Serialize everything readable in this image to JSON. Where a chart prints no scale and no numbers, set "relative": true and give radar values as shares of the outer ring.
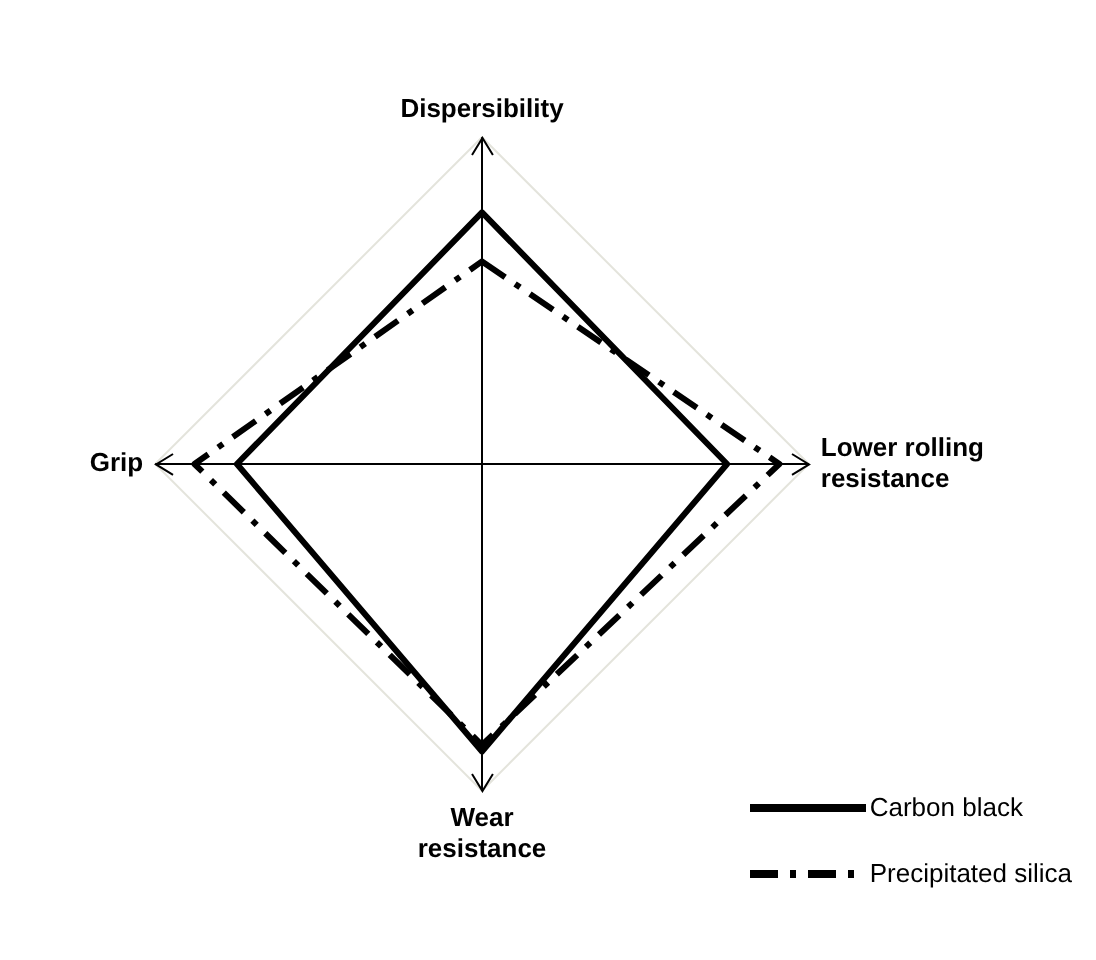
{
  "chart_data": {
    "type": "radar",
    "relative": true,
    "categories": [
      "Dispersibility",
      "Lower rolling resistance",
      "Wear resistance",
      "Grip"
    ],
    "series": [
      {
        "name": "Carbon black",
        "color": "#000000",
        "line_style": "solid",
        "values": [
          0.77,
          0.75,
          0.88,
          0.75
        ]
      },
      {
        "name": "Precipitated silica",
        "color": "#000000",
        "line_style": "dashed",
        "values": [
          0.62,
          0.91,
          0.86,
          0.88
        ]
      }
    ],
    "grid": true,
    "legend": "bottom right",
    "marker": "none"
  }
}
